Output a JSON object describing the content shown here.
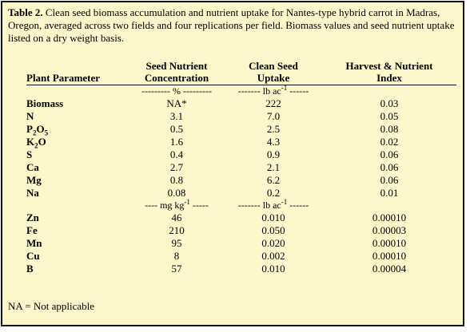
{
  "caption": {
    "label": "Table 2.",
    "text": "Clean seed biomass accumulation and nutrient uptake for Nantes-type hybrid carrot in Madras, Oregon, averaged across two fields and four replications per field. Biomass values and seed nutrient uptake listed on a dry weight basis."
  },
  "headers": {
    "col1": "Plant Parameter",
    "col2_line1": "Seed Nutrient",
    "col2_line2": "Concentration",
    "col3_line1": "Clean Seed",
    "col3_line2": "Uptake",
    "col4_line1": "Harvest & Nutrient",
    "col4_line2": "Index"
  },
  "unit_rows": {
    "first": {
      "conc": "--------- % ---------",
      "uptake_prefix": "------- lb ac",
      "uptake_exp": "-1",
      "uptake_suffix": " ------"
    },
    "second": {
      "conc_prefix": "---- mg kg",
      "conc_exp": "-1",
      "conc_suffix": " -----",
      "uptake_prefix": "------- lb ac",
      "uptake_exp": "-1",
      "uptake_suffix": " ------"
    }
  },
  "macro_rows": [
    {
      "param_html": "Biomass",
      "conc": "NA*",
      "uptake": "222",
      "index": "0.03"
    },
    {
      "param_html": "N",
      "conc": "3.1",
      "uptake": "7.0",
      "index": "0.05"
    },
    {
      "param_html": "P<sub>2</sub>O<sub>5</sub>",
      "conc": "0.5",
      "uptake": "2.5",
      "index": "0.08"
    },
    {
      "param_html": "K<sub>2</sub>O",
      "conc": "1.6",
      "uptake": "4.3",
      "index": "0.02"
    },
    {
      "param_html": "S",
      "conc": "0.4",
      "uptake": "0.9",
      "index": "0.06"
    },
    {
      "param_html": "Ca",
      "conc": "2.7",
      "uptake": "2.1",
      "index": "0.06"
    },
    {
      "param_html": "Mg",
      "conc": "0.8",
      "uptake": "6.2",
      "index": "0.06"
    },
    {
      "param_html": "Na",
      "conc": "0.08",
      "uptake": "0.2",
      "index": "0.01"
    }
  ],
  "micro_rows": [
    {
      "param_html": "Zn",
      "conc": "46",
      "uptake": "0.010",
      "index": "0.00010"
    },
    {
      "param_html": "Fe",
      "conc": "210",
      "uptake": "0.050",
      "index": "0.00003"
    },
    {
      "param_html": "Mn",
      "conc": "95",
      "uptake": "0.020",
      "index": "0.00010"
    },
    {
      "param_html": "Cu",
      "conc": "8",
      "uptake": "0.002",
      "index": "0.00010"
    },
    {
      "param_html": "B",
      "conc": "57",
      "uptake": "0.010",
      "index": "0.00004"
    }
  ],
  "footnote": "NA = Not applicable",
  "colors": {
    "background": "#fff7cc",
    "border": "#111111"
  }
}
